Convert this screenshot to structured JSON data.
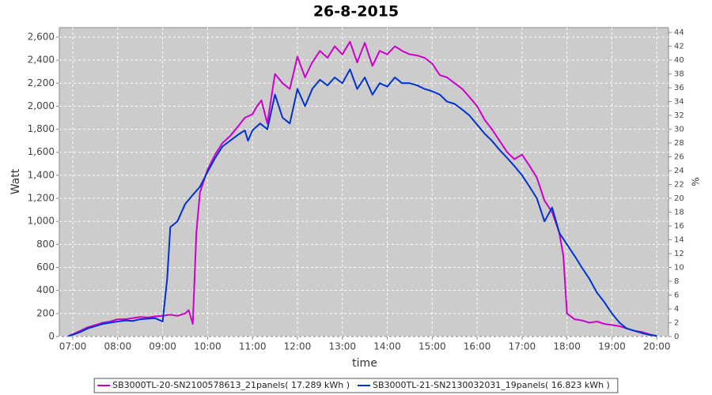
{
  "chart_data": {
    "type": "line",
    "title": "26-8-2015",
    "x_label": "time",
    "y_label": "Watt",
    "y2_label": "%",
    "xlim": [
      6.7,
      20.26
    ],
    "xticks": [
      {
        "value": 7,
        "label": "07:00"
      },
      {
        "value": 8,
        "label": "08:00"
      },
      {
        "value": 9,
        "label": "09:00"
      },
      {
        "value": 10,
        "label": "10:00"
      },
      {
        "value": 11,
        "label": "11:00"
      },
      {
        "value": 12,
        "label": "12:00"
      },
      {
        "value": 13,
        "label": "13:00"
      },
      {
        "value": 14,
        "label": "14:00"
      },
      {
        "value": 15,
        "label": "15:00"
      },
      {
        "value": 16,
        "label": "16:00"
      },
      {
        "value": 17,
        "label": "17:00"
      },
      {
        "value": 18,
        "label": "18:00"
      },
      {
        "value": 19,
        "label": "19:00"
      },
      {
        "value": 20,
        "label": "20:00"
      }
    ],
    "ylim": [
      0,
      2682
    ],
    "yticks": [
      0,
      200,
      400,
      600,
      800,
      {
        "value": 1000,
        "label": "1,000"
      },
      {
        "value": 1200,
        "label": "1,200"
      },
      {
        "value": 1400,
        "label": "1,400"
      },
      {
        "value": 1600,
        "label": "1,600"
      },
      {
        "value": 1800,
        "label": "1,800"
      },
      {
        "value": 2000,
        "label": "2,000"
      },
      {
        "value": 2200,
        "label": "2,200"
      },
      {
        "value": 2400,
        "label": "2,400"
      },
      {
        "value": 2600,
        "label": "2,600"
      }
    ],
    "y2lim": [
      0,
      44.7
    ],
    "y2ticks": [
      0,
      2,
      4,
      6,
      8,
      10,
      12,
      14,
      16,
      18,
      20,
      22,
      24,
      26,
      28,
      30,
      32,
      34,
      36,
      38,
      40,
      42,
      44
    ],
    "grid": true,
    "legend": "bottom",
    "series": [
      {
        "name": "SB3000TL-20-SN2100578613_21panels( 17.289 kWh )",
        "color": "#cc00cc",
        "x": [
          6.9,
          7.0,
          7.17,
          7.33,
          7.5,
          7.67,
          7.83,
          8.0,
          8.17,
          8.33,
          8.5,
          8.67,
          8.83,
          9.0,
          9.17,
          9.33,
          9.5,
          9.58,
          9.67,
          9.75,
          9.83,
          10.0,
          10.17,
          10.33,
          10.5,
          10.67,
          10.83,
          11.0,
          11.1,
          11.2,
          11.33,
          11.5,
          11.67,
          11.83,
          12.0,
          12.17,
          12.33,
          12.5,
          12.67,
          12.83,
          13.0,
          13.17,
          13.33,
          13.5,
          13.67,
          13.83,
          14.0,
          14.17,
          14.33,
          14.5,
          14.67,
          14.83,
          15.0,
          15.17,
          15.33,
          15.5,
          15.67,
          15.83,
          16.0,
          16.17,
          16.33,
          16.5,
          16.67,
          16.83,
          17.0,
          17.17,
          17.33,
          17.5,
          17.67,
          17.83,
          17.92,
          18.0,
          18.17,
          18.33,
          18.5,
          18.67,
          18.83,
          19.0,
          19.17,
          19.33,
          19.5,
          19.67,
          19.83,
          20.0
        ],
        "values": [
          5,
          20,
          50,
          80,
          100,
          120,
          130,
          150,
          150,
          160,
          170,
          165,
          175,
          180,
          190,
          180,
          200,
          230,
          110,
          900,
          1250,
          1450,
          1580,
          1680,
          1740,
          1820,
          1900,
          1930,
          2000,
          2050,
          1850,
          2280,
          2200,
          2150,
          2430,
          2250,
          2380,
          2480,
          2420,
          2520,
          2450,
          2560,
          2380,
          2550,
          2350,
          2480,
          2450,
          2520,
          2480,
          2450,
          2440,
          2420,
          2370,
          2270,
          2250,
          2200,
          2150,
          2080,
          2000,
          1880,
          1800,
          1700,
          1600,
          1540,
          1580,
          1480,
          1380,
          1180,
          1080,
          900,
          700,
          200,
          150,
          140,
          120,
          130,
          110,
          100,
          90,
          70,
          50,
          40,
          20,
          5
        ]
      },
      {
        "name": "SB3000TL-21-SN2130032031_19panels( 16.823 kWh )",
        "color": "#0033cc",
        "x": [
          6.9,
          7.0,
          7.17,
          7.33,
          7.5,
          7.67,
          7.83,
          8.0,
          8.17,
          8.33,
          8.5,
          8.67,
          8.83,
          9.0,
          9.1,
          9.17,
          9.33,
          9.5,
          9.67,
          9.83,
          10.0,
          10.17,
          10.33,
          10.5,
          10.67,
          10.83,
          10.9,
          11.0,
          11.17,
          11.33,
          11.5,
          11.67,
          11.83,
          12.0,
          12.17,
          12.33,
          12.5,
          12.67,
          12.83,
          13.0,
          13.17,
          13.33,
          13.5,
          13.67,
          13.83,
          14.0,
          14.17,
          14.33,
          14.5,
          14.67,
          14.83,
          15.0,
          15.17,
          15.33,
          15.5,
          15.67,
          15.83,
          16.0,
          16.17,
          16.33,
          16.5,
          16.67,
          16.83,
          17.0,
          17.17,
          17.33,
          17.5,
          17.67,
          17.83,
          18.0,
          18.17,
          18.33,
          18.5,
          18.67,
          18.83,
          19.0,
          19.17,
          19.33,
          19.5,
          19.67,
          19.83,
          20.0
        ],
        "values": [
          5,
          15,
          40,
          70,
          90,
          110,
          120,
          130,
          140,
          135,
          150,
          155,
          160,
          130,
          500,
          950,
          1000,
          1150,
          1230,
          1300,
          1430,
          1550,
          1650,
          1700,
          1750,
          1790,
          1700,
          1790,
          1850,
          1800,
          2100,
          1900,
          1850,
          2150,
          2000,
          2150,
          2230,
          2180,
          2250,
          2200,
          2320,
          2150,
          2250,
          2100,
          2200,
          2170,
          2250,
          2200,
          2200,
          2180,
          2150,
          2130,
          2100,
          2040,
          2020,
          1970,
          1920,
          1840,
          1760,
          1700,
          1620,
          1550,
          1480,
          1400,
          1300,
          1200,
          1000,
          1120,
          900,
          800,
          700,
          600,
          500,
          380,
          300,
          200,
          120,
          70,
          50,
          30,
          15,
          5
        ]
      }
    ]
  }
}
